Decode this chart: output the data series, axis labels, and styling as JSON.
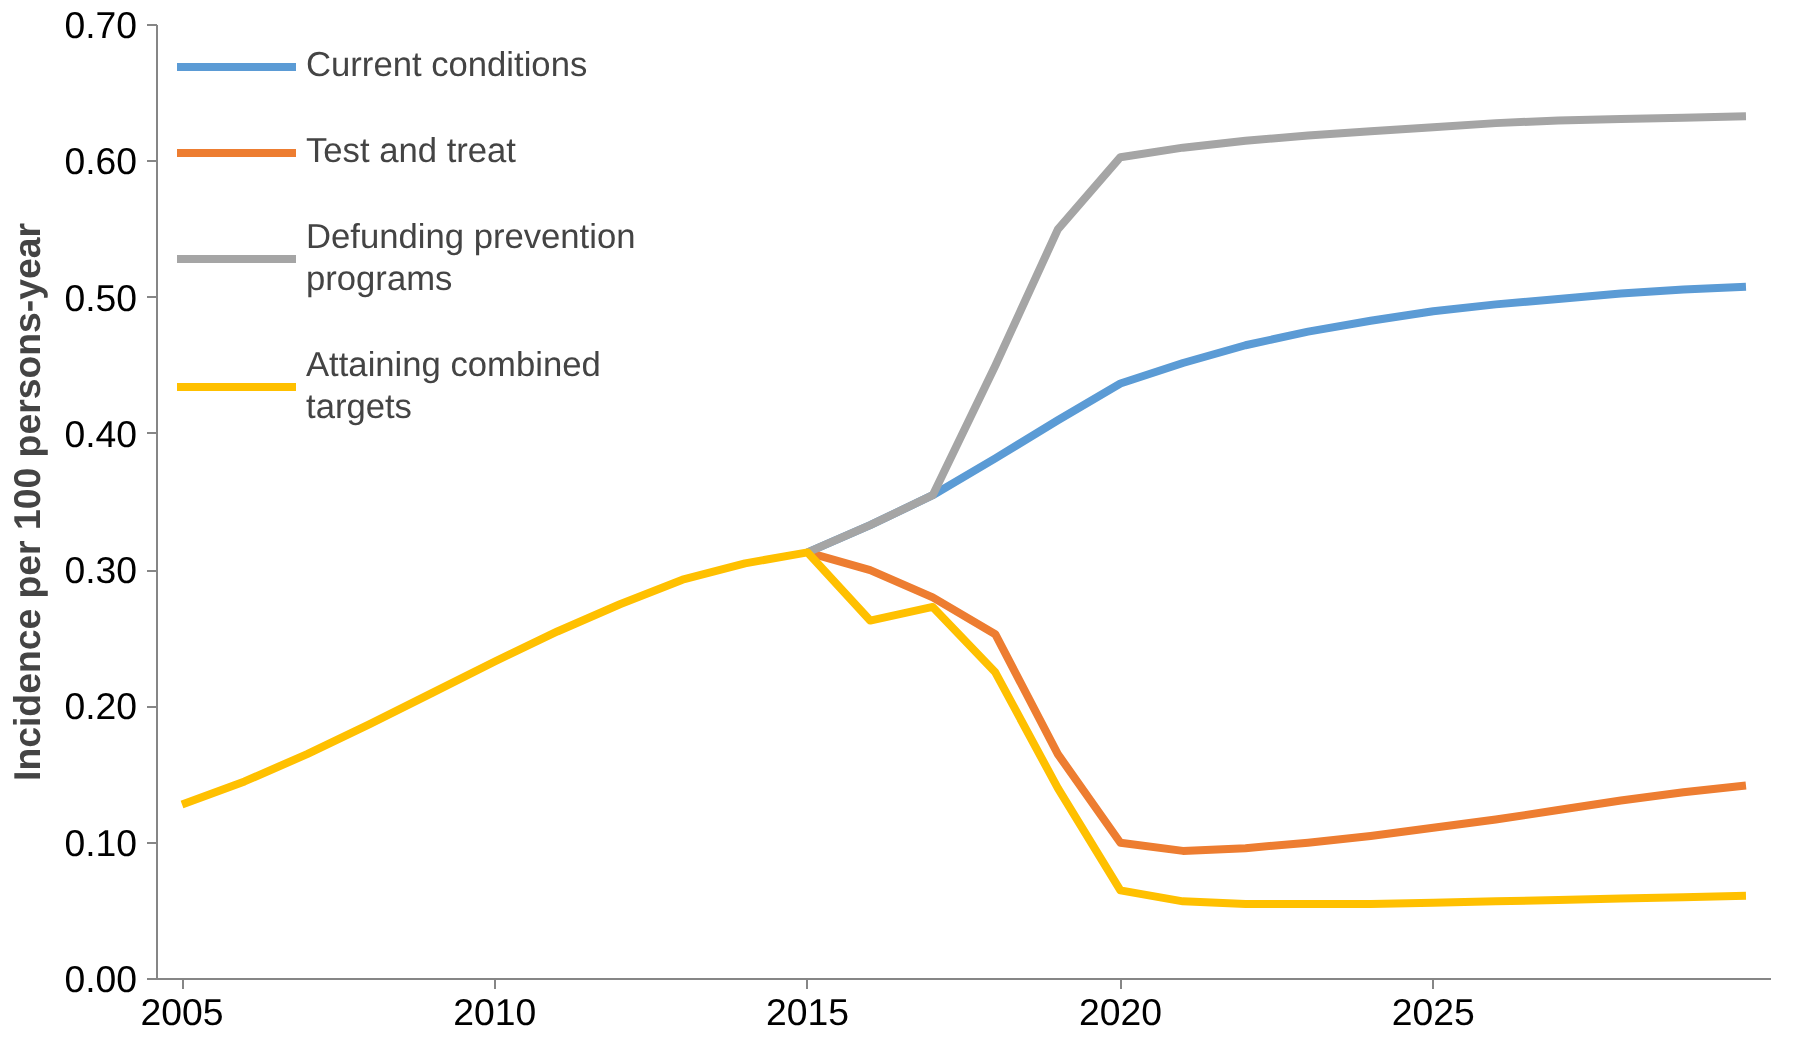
{
  "chart_data": {
    "type": "line",
    "ylabel": "Incidence per 100 persons-year",
    "x": [
      2005,
      2006,
      2007,
      2008,
      2009,
      2010,
      2011,
      2012,
      2013,
      2014,
      2015,
      2016,
      2017,
      2018,
      2019,
      2020,
      2021,
      2022,
      2023,
      2024,
      2025,
      2026,
      2027,
      2028,
      2029,
      2030
    ],
    "series": [
      {
        "name": "Current conditions",
        "color": "#5b9bd5",
        "values": [
          null,
          null,
          null,
          null,
          null,
          null,
          null,
          null,
          null,
          null,
          0.313,
          0.333,
          0.355,
          0.382,
          0.41,
          0.437,
          0.452,
          0.465,
          0.475,
          0.483,
          0.49,
          0.495,
          0.499,
          0.503,
          0.506,
          0.508
        ]
      },
      {
        "name": "Test and treat",
        "color": "#ed7d31",
        "values": [
          null,
          null,
          null,
          null,
          null,
          null,
          null,
          null,
          null,
          null,
          0.313,
          0.3,
          0.28,
          0.253,
          0.165,
          0.1,
          0.094,
          0.096,
          0.1,
          0.105,
          0.111,
          0.117,
          0.124,
          0.131,
          0.137,
          0.142
        ]
      },
      {
        "name": "Defunding prevention programs",
        "color": "#a5a5a5",
        "values": [
          null,
          null,
          null,
          null,
          null,
          null,
          null,
          null,
          null,
          null,
          0.313,
          0.333,
          0.355,
          0.45,
          0.55,
          0.603,
          0.61,
          0.615,
          0.619,
          0.622,
          0.625,
          0.628,
          0.63,
          0.631,
          0.632,
          0.633
        ]
      },
      {
        "name": "Attaining combined targets",
        "color": "#ffc000",
        "values": [
          0.128,
          0.145,
          0.165,
          0.187,
          0.21,
          0.233,
          0.255,
          0.275,
          0.293,
          0.305,
          0.313,
          0.263,
          0.273,
          0.225,
          0.14,
          0.065,
          0.057,
          0.055,
          0.055,
          0.055,
          0.056,
          0.057,
          0.058,
          0.059,
          0.06,
          0.061
        ]
      }
    ],
    "xlim": [
      2004.6,
      2030.4
    ],
    "xticks": [
      2005,
      2010,
      2015,
      2020,
      2025
    ],
    "ylim": [
      0,
      0.7
    ],
    "yticks": [
      {
        "value": 0,
        "label": "0.00"
      },
      {
        "value": 0.1,
        "label": "0.10"
      },
      {
        "value": 0.2,
        "label": "0.20"
      },
      {
        "value": 0.3,
        "label": "0.30"
      },
      {
        "value": 0.4,
        "label": "0.40"
      },
      {
        "value": 0.5,
        "label": "0.50"
      },
      {
        "value": 0.6,
        "label": "0.60"
      },
      {
        "value": 0.7,
        "label": "0.70"
      }
    ],
    "grid": false,
    "legend": "top left",
    "marker": "none",
    "line_style": "solid"
  }
}
